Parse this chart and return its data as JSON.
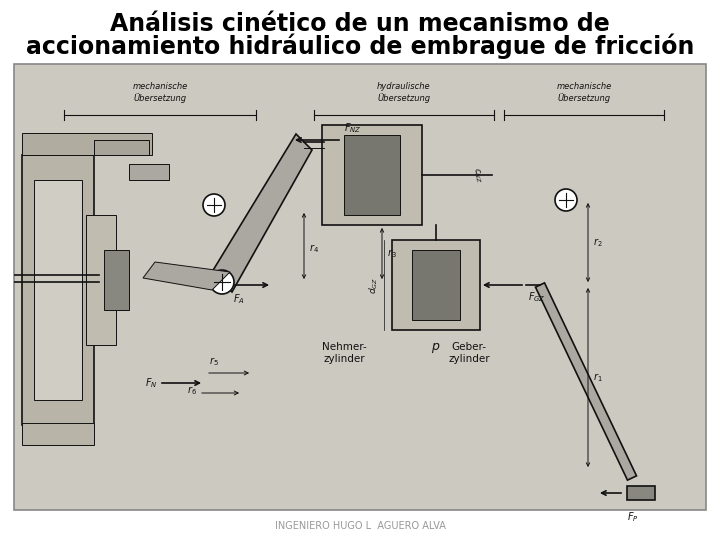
{
  "title_line1": "Análisis cinético de un mecanismo de",
  "title_line2": "accionamiento hidráulico de embrague de fricción",
  "footer": "INGENIERO HUGO L  AGUERO ALVA",
  "title_fontsize": 17,
  "title_fontweight": "bold",
  "footer_fontsize": 7,
  "footer_color": "#999999",
  "background_color": "#ffffff",
  "img_bg_color": "#ccc9c0",
  "img_border_color": "#888888",
  "dark": "#111111",
  "mid": "#666666",
  "light_gray": "#aaaaaa",
  "panel_gray": "#b0aca0",
  "dark_gray": "#555550"
}
